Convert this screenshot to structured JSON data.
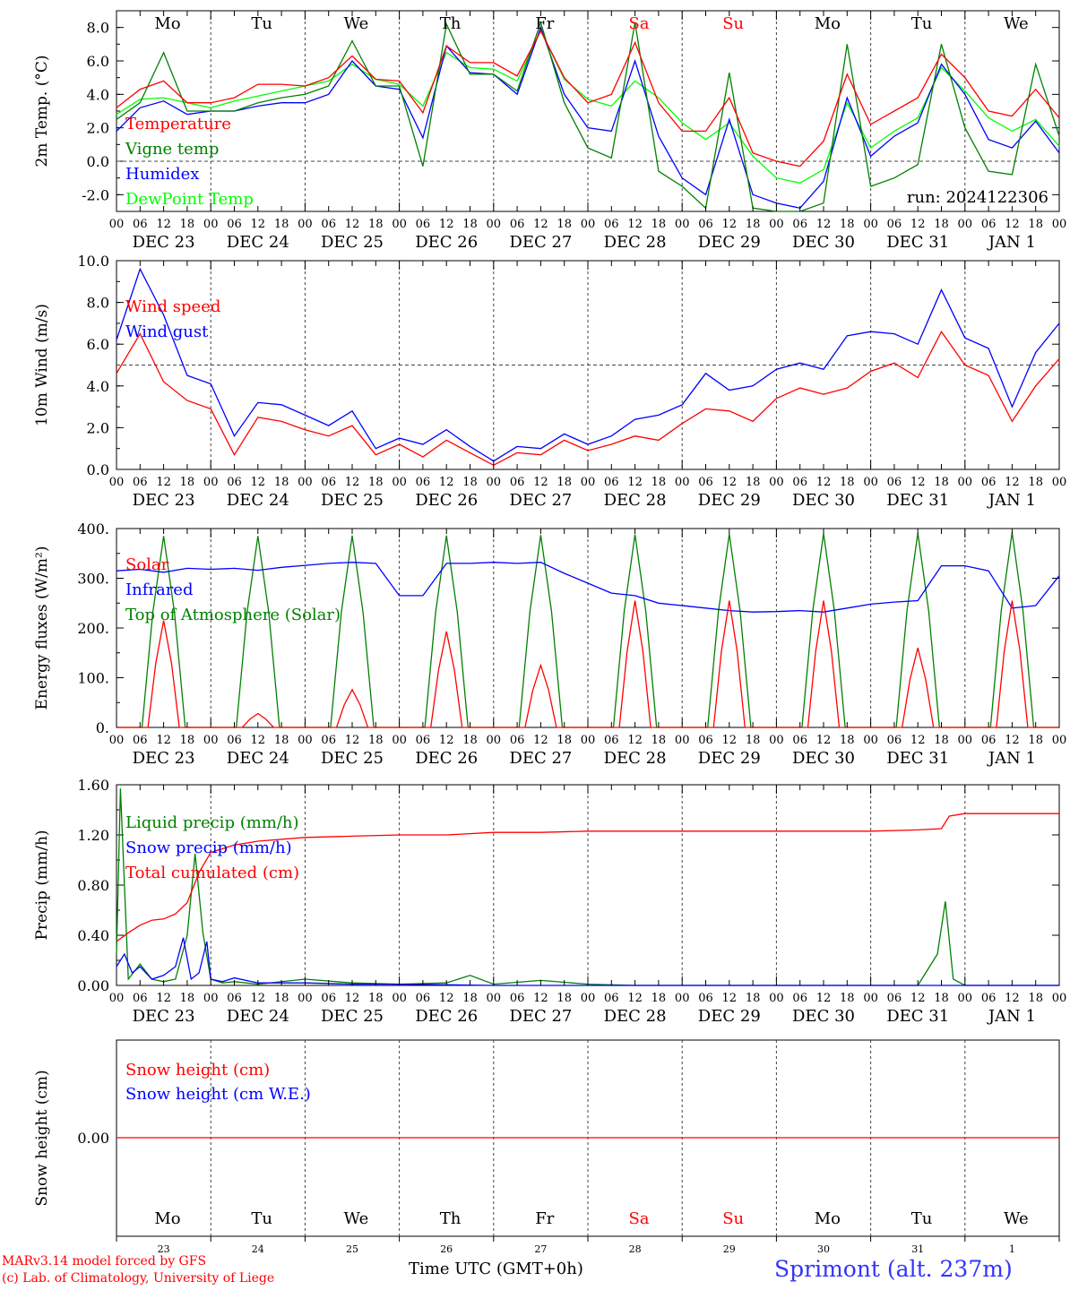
{
  "run_label": "run: 2024122306",
  "x_hour_labels": [
    "00",
    "06",
    "12",
    "18"
  ],
  "day_labels": [
    "DEC 23",
    "DEC 24",
    "DEC 25",
    "DEC 26",
    "DEC 27",
    "DEC 28",
    "DEC 29",
    "DEC 30",
    "DEC 31",
    "JAN  1"
  ],
  "weekdays": [
    "Mo",
    "Tu",
    "We",
    "Th",
    "Fr",
    "Sa",
    "Su",
    "Mo",
    "Tu",
    "We"
  ],
  "weekday_dates": [
    "23",
    "24",
    "25",
    "26",
    "27",
    "28",
    "29",
    "30",
    "31",
    "1"
  ],
  "weekend_color": "#ff0000",
  "footer": {
    "model_line": "MARv3.14 model forced by GFS",
    "lab_line": "(c) Lab. of Climatology, University of Liege",
    "time_axis": "Time UTC (GMT+0h)",
    "station": "Sprimont (alt. 237m)"
  },
  "chart_data": [
    {
      "type": "line",
      "ylabel": "2m Temp. (°C)",
      "ylim": [
        -3,
        9
      ],
      "yticks": [
        -2,
        0,
        2,
        4,
        6,
        8
      ],
      "ytick_labels": [
        "-2.0",
        "0.0",
        "2.0",
        "4.0",
        "6.0",
        "8.0"
      ],
      "x_unit": "hours since DEC 23 00 UTC",
      "series": [
        {
          "name": "Temperature",
          "color": "#ff0000",
          "x": [
            0,
            6,
            12,
            18,
            24,
            30,
            36,
            42,
            48,
            54,
            60,
            66,
            72,
            78,
            84,
            90,
            96,
            102,
            108,
            114,
            120,
            126,
            132,
            138,
            144,
            150,
            156,
            162,
            168,
            174,
            180,
            186,
            192,
            198,
            204,
            210,
            216,
            222,
            228,
            234,
            240
          ],
          "values": [
            3.2,
            4.3,
            4.8,
            3.5,
            3.5,
            3.8,
            4.6,
            4.6,
            4.5,
            5.0,
            6.3,
            4.9,
            4.8,
            2.9,
            6.9,
            5.9,
            5.9,
            5.1,
            7.8,
            5.0,
            3.5,
            4.0,
            7.1,
            3.5,
            1.8,
            1.8,
            3.8,
            0.5,
            0.0,
            -0.3,
            1.2,
            5.2,
            2.2,
            3.0,
            3.8,
            6.4,
            5.0,
            3.0,
            2.7,
            4.3,
            2.6
          ]
        },
        {
          "name": "Vigne temp",
          "color": "#008000",
          "x": [
            0,
            6,
            12,
            18,
            24,
            30,
            36,
            42,
            48,
            54,
            60,
            66,
            72,
            78,
            84,
            90,
            96,
            102,
            108,
            114,
            120,
            126,
            132,
            138,
            144,
            150,
            156,
            162,
            168,
            174,
            180,
            186,
            192,
            198,
            204,
            210,
            216,
            222,
            228,
            234,
            240
          ],
          "values": [
            2.5,
            3.5,
            6.5,
            3.0,
            3.0,
            3.0,
            3.5,
            3.8,
            4.0,
            4.5,
            7.2,
            4.5,
            4.5,
            -0.3,
            8.2,
            5.2,
            5.2,
            4.2,
            8.3,
            3.5,
            0.8,
            0.2,
            8.3,
            -0.6,
            -1.5,
            -2.8,
            5.3,
            -2.8,
            -3.0,
            -3.3,
            -2.5,
            7.0,
            -1.5,
            -1.0,
            -0.2,
            7.0,
            2.0,
            -0.6,
            -0.8,
            5.8,
            1.5
          ]
        },
        {
          "name": "Humidex",
          "color": "#0000ff",
          "x": [
            0,
            6,
            12,
            18,
            24,
            30,
            36,
            42,
            48,
            54,
            60,
            66,
            72,
            78,
            84,
            90,
            96,
            102,
            108,
            114,
            120,
            126,
            132,
            138,
            144,
            150,
            156,
            162,
            168,
            174,
            180,
            186,
            192,
            198,
            204,
            210,
            216,
            222,
            228,
            234,
            240
          ],
          "values": [
            1.8,
            3.2,
            3.6,
            2.8,
            3.0,
            3.0,
            3.3,
            3.5,
            3.5,
            4.0,
            6.0,
            4.5,
            4.3,
            1.4,
            6.9,
            5.3,
            5.2,
            4.0,
            8.0,
            4.0,
            2.0,
            1.8,
            6.0,
            1.5,
            -1.0,
            -2.0,
            2.5,
            -2.0,
            -2.5,
            -2.8,
            -1.2,
            3.8,
            0.3,
            1.5,
            2.3,
            5.8,
            4.0,
            1.3,
            0.8,
            2.4,
            0.5
          ]
        },
        {
          "name": "DewPoint Temp",
          "color": "#00ff00",
          "x": [
            0,
            6,
            12,
            18,
            24,
            30,
            36,
            42,
            48,
            54,
            60,
            66,
            72,
            78,
            84,
            90,
            96,
            102,
            108,
            114,
            120,
            126,
            132,
            138,
            144,
            150,
            156,
            162,
            168,
            174,
            180,
            186,
            192,
            198,
            204,
            210,
            216,
            222,
            228,
            234,
            240
          ],
          "values": [
            2.8,
            3.7,
            3.8,
            3.5,
            3.2,
            3.6,
            3.9,
            4.2,
            4.5,
            4.8,
            5.8,
            4.9,
            4.6,
            3.3,
            6.5,
            5.6,
            5.5,
            4.8,
            7.8,
            4.9,
            3.7,
            3.3,
            4.8,
            3.8,
            2.3,
            1.3,
            2.3,
            0.3,
            -1.0,
            -1.3,
            -0.5,
            3.5,
            0.8,
            1.8,
            2.6,
            5.6,
            4.2,
            2.6,
            1.8,
            2.5,
            0.9
          ]
        }
      ],
      "reference_lines": [
        0
      ]
    },
    {
      "type": "line",
      "ylabel": "10m Wind (m/s)",
      "ylim": [
        0,
        10
      ],
      "yticks": [
        0,
        2,
        4,
        6,
        8,
        10
      ],
      "ytick_labels": [
        "0.0",
        "2.0",
        "4.0",
        "6.0",
        "8.0",
        "10.0"
      ],
      "x_unit": "hours since DEC 23 00 UTC",
      "series": [
        {
          "name": "Wind speed",
          "color": "#ff0000",
          "x": [
            0,
            6,
            12,
            18,
            24,
            30,
            36,
            42,
            48,
            54,
            60,
            66,
            72,
            78,
            84,
            90,
            96,
            102,
            108,
            114,
            120,
            126,
            132,
            138,
            144,
            150,
            156,
            162,
            168,
            174,
            180,
            186,
            192,
            198,
            204,
            210,
            216,
            222,
            228,
            234,
            240
          ],
          "values": [
            4.6,
            6.5,
            4.2,
            3.3,
            2.9,
            0.7,
            2.5,
            2.3,
            1.9,
            1.6,
            2.1,
            0.7,
            1.2,
            0.6,
            1.4,
            0.8,
            0.2,
            0.8,
            0.7,
            1.4,
            0.9,
            1.2,
            1.6,
            1.4,
            2.2,
            2.9,
            2.8,
            2.3,
            3.4,
            3.9,
            3.6,
            3.9,
            4.7,
            5.1,
            4.4,
            6.6,
            5.0,
            4.5,
            2.3,
            4.0,
            5.3
          ]
        },
        {
          "name": "Wind gust",
          "color": "#0000ff",
          "x": [
            0,
            6,
            12,
            18,
            24,
            30,
            36,
            42,
            48,
            54,
            60,
            66,
            72,
            78,
            84,
            90,
            96,
            102,
            108,
            114,
            120,
            126,
            132,
            138,
            144,
            150,
            156,
            162,
            168,
            174,
            180,
            186,
            192,
            198,
            204,
            210,
            216,
            222,
            228,
            234,
            240
          ],
          "values": [
            6.2,
            9.6,
            7.4,
            4.5,
            4.1,
            1.6,
            3.2,
            3.1,
            2.6,
            2.1,
            2.8,
            1.0,
            1.5,
            1.2,
            1.9,
            1.1,
            0.4,
            1.1,
            1.0,
            1.7,
            1.2,
            1.6,
            2.4,
            2.6,
            3.1,
            4.6,
            3.8,
            4.0,
            4.8,
            5.1,
            4.8,
            6.4,
            6.6,
            6.5,
            6.0,
            8.6,
            6.3,
            5.8,
            3.0,
            5.6,
            7.0
          ]
        }
      ],
      "reference_lines": [
        5
      ]
    },
    {
      "type": "line",
      "ylabel": "Energy fluxes (W/m²)",
      "ylim": [
        0,
        400
      ],
      "yticks": [
        0,
        100,
        200,
        300,
        400
      ],
      "ytick_labels": [
        "0.",
        "100.",
        "200.",
        "300.",
        "400."
      ],
      "x_unit": "hours since DEC 23 00 UTC",
      "series": [
        {
          "name": "Solar",
          "color": "#ff0000",
          "peaks": [
            {
              "day": 0,
              "value": 215
            },
            {
              "day": 1,
              "value": 28
            },
            {
              "day": 2,
              "value": 76
            },
            {
              "day": 3,
              "value": 193
            },
            {
              "day": 4,
              "value": 125
            },
            {
              "day": 5,
              "value": 255
            },
            {
              "day": 6,
              "value": 255
            },
            {
              "day": 7,
              "value": 255
            },
            {
              "day": 8,
              "value": 160
            },
            {
              "day": 9,
              "value": 255
            }
          ]
        },
        {
          "name": "Infrared",
          "color": "#0000ff",
          "x": [
            0,
            6,
            12,
            18,
            24,
            30,
            36,
            42,
            48,
            54,
            60,
            66,
            72,
            78,
            84,
            90,
            96,
            102,
            108,
            114,
            120,
            126,
            132,
            138,
            144,
            150,
            156,
            162,
            168,
            174,
            180,
            186,
            192,
            198,
            204,
            210,
            216,
            222,
            228,
            234,
            240
          ],
          "values": [
            315,
            318,
            312,
            320,
            318,
            320,
            316,
            322,
            326,
            330,
            332,
            330,
            265,
            265,
            330,
            330,
            332,
            330,
            332,
            310,
            290,
            270,
            265,
            250,
            245,
            240,
            235,
            232,
            233,
            235,
            232,
            240,
            248,
            252,
            255,
            325,
            325,
            315,
            240,
            245,
            305
          ]
        },
        {
          "name": "Top of Atmosphere (Solar)",
          "color": "#008000",
          "peaks": [
            {
              "day": 0,
              "value": 385
            },
            {
              "day": 1,
              "value": 385
            },
            {
              "day": 2,
              "value": 386
            },
            {
              "day": 3,
              "value": 386
            },
            {
              "day": 4,
              "value": 387
            },
            {
              "day": 5,
              "value": 388
            },
            {
              "day": 6,
              "value": 389
            },
            {
              "day": 7,
              "value": 390
            },
            {
              "day": 8,
              "value": 391
            },
            {
              "day": 9,
              "value": 392
            }
          ]
        }
      ]
    },
    {
      "type": "line",
      "ylabel": "Precip (mm/h)",
      "ylim": [
        0,
        1.6
      ],
      "yticks": [
        0,
        0.4,
        0.8,
        1.2,
        1.6
      ],
      "ytick_labels": [
        "0.00",
        "0.40",
        "0.80",
        "1.20",
        "1.60"
      ],
      "x_unit": "hours since DEC 23 00 UTC",
      "series": [
        {
          "name": "Liquid precip (mm/h)",
          "color": "#008000",
          "x": [
            0,
            1,
            3,
            6,
            9,
            12,
            15,
            18,
            20,
            22,
            24,
            27,
            30,
            36,
            48,
            60,
            72,
            84,
            90,
            96,
            108,
            120,
            132,
            144,
            180,
            204,
            209,
            211,
            213,
            216,
            240
          ],
          "values": [
            0.25,
            1.57,
            0.05,
            0.17,
            0.05,
            0.03,
            0.05,
            0.4,
            1.05,
            0.42,
            0.05,
            0.02,
            0.03,
            0.01,
            0.05,
            0.02,
            0.01,
            0.02,
            0.08,
            0.01,
            0.04,
            0.01,
            0.0,
            0.0,
            0.0,
            0.0,
            0.25,
            0.67,
            0.05,
            0.0,
            0.0
          ]
        },
        {
          "name": "Snow precip (mm/h)",
          "color": "#0000ff",
          "x": [
            0,
            2,
            4,
            6,
            9,
            12,
            15,
            17,
            19,
            21,
            23,
            24,
            27,
            30,
            36,
            48,
            60,
            72,
            96,
            120,
            144,
            240
          ],
          "values": [
            0.15,
            0.25,
            0.1,
            0.15,
            0.05,
            0.08,
            0.15,
            0.38,
            0.05,
            0.1,
            0.35,
            0.05,
            0.03,
            0.06,
            0.02,
            0.02,
            0.01,
            0.01,
            0.0,
            0.0,
            0.0,
            0.0
          ]
        },
        {
          "name": "Total cumulated (cm)",
          "color": "#ff0000",
          "x": [
            0,
            3,
            6,
            9,
            12,
            15,
            18,
            21,
            24,
            30,
            36,
            48,
            60,
            72,
            84,
            96,
            108,
            120,
            144,
            168,
            192,
            204,
            210,
            212,
            216,
            228,
            240
          ],
          "values": [
            0.35,
            0.42,
            0.48,
            0.52,
            0.53,
            0.57,
            0.66,
            0.9,
            1.06,
            1.12,
            1.15,
            1.18,
            1.19,
            1.2,
            1.2,
            1.22,
            1.22,
            1.23,
            1.23,
            1.23,
            1.23,
            1.24,
            1.25,
            1.35,
            1.37,
            1.37,
            1.37
          ]
        }
      ]
    },
    {
      "type": "line",
      "ylabel": "Snow height (cm)",
      "ytick_labels": [
        "0.00"
      ],
      "series": [
        {
          "name": "Snow height (cm)",
          "color": "#ff0000",
          "x": [
            0,
            240
          ],
          "values": [
            0,
            0
          ]
        },
        {
          "name": "Snow height (cm W.E.)",
          "color": "#0000ff",
          "x": [
            0,
            240
          ],
          "values": [
            0,
            0
          ]
        }
      ]
    }
  ]
}
